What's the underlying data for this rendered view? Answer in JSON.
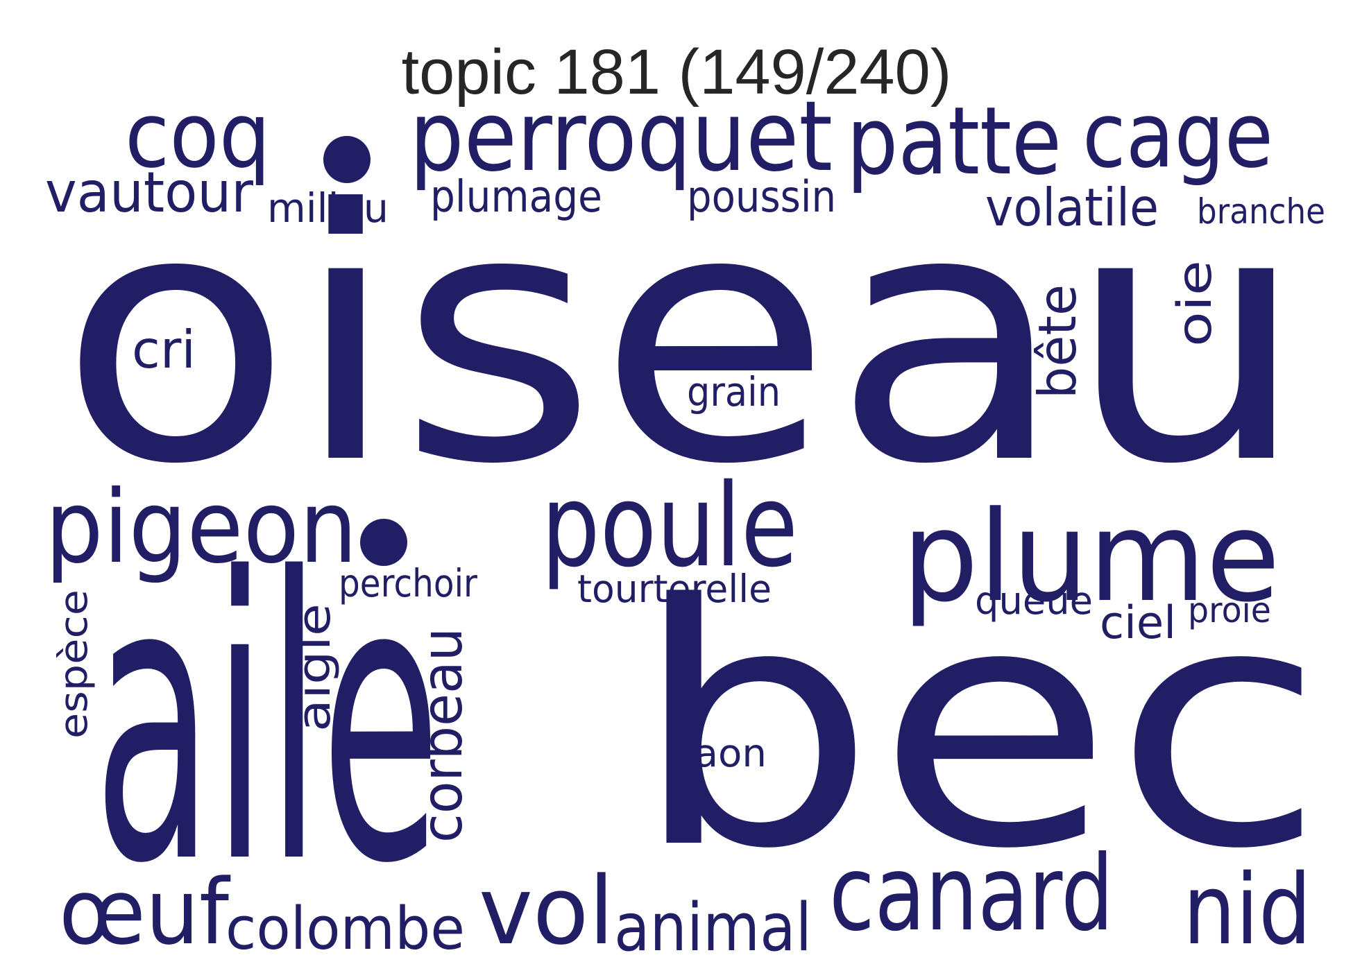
{
  "title": "topic 181 (149/240)",
  "color": "#211e66",
  "words": [
    "oiseau",
    "aile",
    "bec",
    "pigeon",
    "poule",
    "plume",
    "coq",
    "perroquet",
    "patte",
    "cage",
    "vautour",
    "milieu",
    "plumage",
    "poussin",
    "volatile",
    "branche",
    "cri",
    "grain",
    "bête",
    "oie",
    "perchoir",
    "tourterelle",
    "queue",
    "ciel",
    "proie",
    "espèce",
    "aigle",
    "corbeau",
    "paon",
    "œuf",
    "colombe",
    "vol",
    "animal",
    "canard",
    "nid"
  ],
  "dots": [
    "dot",
    "dot"
  ]
}
